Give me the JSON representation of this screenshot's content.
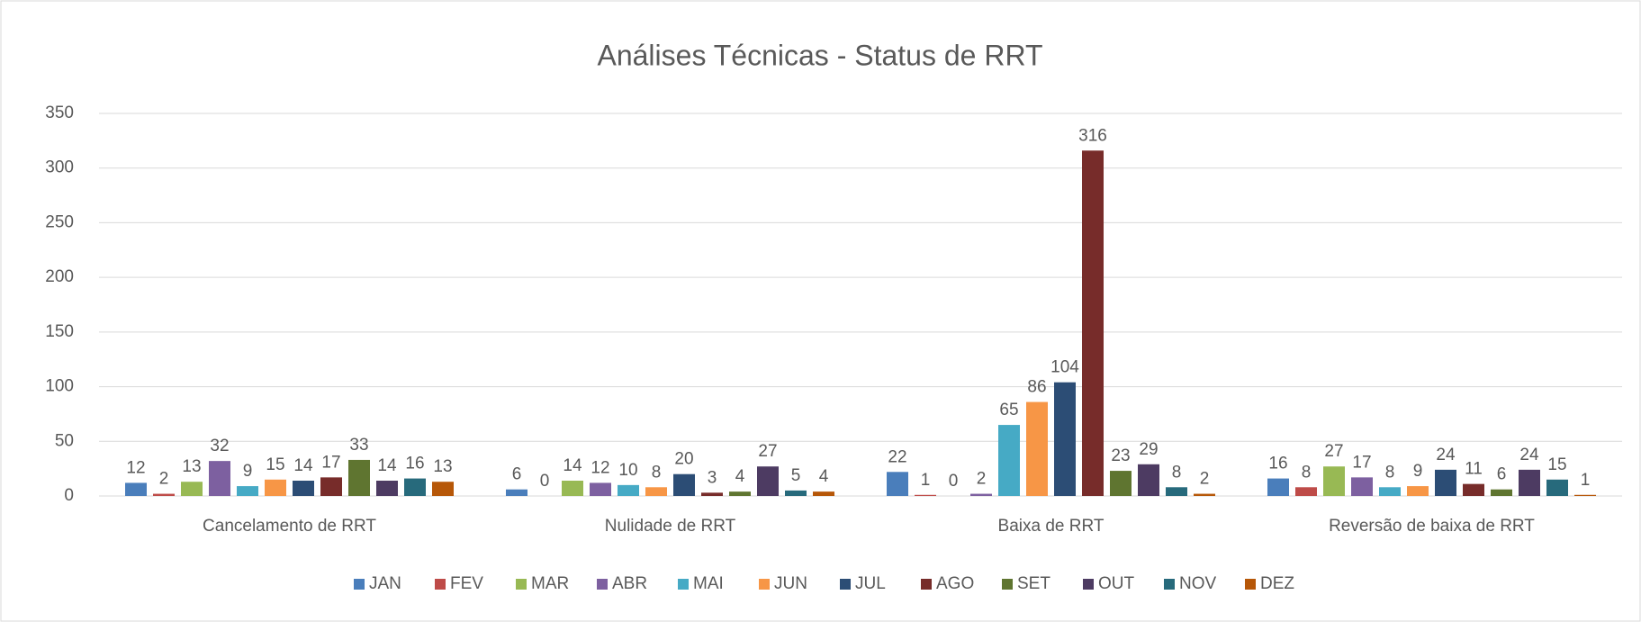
{
  "chart_data": {
    "type": "bar",
    "title": "Análises Técnicas - Status de RRT",
    "categories": [
      "Cancelamento de RRT",
      "Nulidade de RRT",
      "Baixa de RRT",
      "Reversão de baixa de RRT"
    ],
    "series": [
      {
        "name": "JAN",
        "color": "#4a7ebb",
        "values": [
          12,
          6,
          22,
          16
        ]
      },
      {
        "name": "FEV",
        "color": "#be4b48",
        "values": [
          2,
          0,
          1,
          8
        ]
      },
      {
        "name": "MAR",
        "color": "#98b954",
        "values": [
          13,
          14,
          0,
          27
        ]
      },
      {
        "name": "ABR",
        "color": "#7d60a0",
        "values": [
          32,
          12,
          2,
          17
        ]
      },
      {
        "name": "MAI",
        "color": "#46aac5",
        "values": [
          9,
          10,
          65,
          8
        ]
      },
      {
        "name": "JUN",
        "color": "#f79646",
        "values": [
          15,
          8,
          86,
          9
        ]
      },
      {
        "name": "JUL",
        "color": "#2c4d75",
        "values": [
          14,
          20,
          104,
          24
        ]
      },
      {
        "name": "AGO",
        "color": "#772c2a",
        "values": [
          17,
          3,
          316,
          11
        ]
      },
      {
        "name": "SET",
        "color": "#5f7530",
        "values": [
          33,
          4,
          23,
          6
        ]
      },
      {
        "name": "OUT",
        "color": "#4d3b62",
        "values": [
          14,
          27,
          29,
          24
        ]
      },
      {
        "name": "NOV",
        "color": "#276a7c",
        "values": [
          16,
          5,
          8,
          15
        ]
      },
      {
        "name": "DEZ",
        "color": "#b65708",
        "values": [
          13,
          4,
          2,
          1
        ]
      }
    ],
    "ylim": [
      0,
      350
    ],
    "yticks": [
      0,
      50,
      100,
      150,
      200,
      250,
      300,
      350
    ],
    "grid": true,
    "legend": "bottom"
  }
}
